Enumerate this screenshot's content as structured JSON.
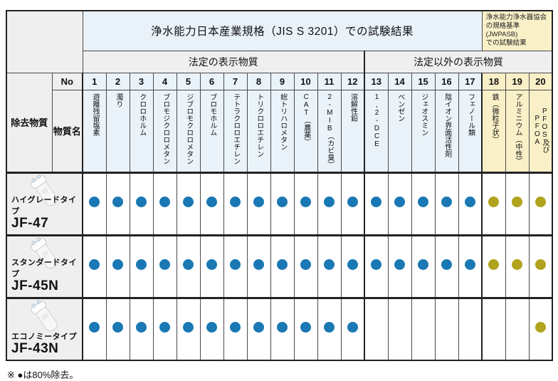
{
  "table": {
    "jis_title": "浄水能力日本産業規格（JIS S 3201）での試験結果",
    "jwpasb": {
      "line1": "浄水能力浄水器協会",
      "line2": "の規格基準(JWPASB)",
      "line3": "での試験結果"
    },
    "legal_group_label": "法定の表示物質",
    "nonlegal_group_label": "法定以外の表示物質",
    "removal_label": "除去物質",
    "no_label": "No",
    "substance_label": "物質名",
    "columns": [
      {
        "no": 1,
        "name": "遊離残留塩素",
        "group": "legal",
        "jwpasb": false
      },
      {
        "no": 2,
        "name": "濁り",
        "group": "legal",
        "jwpasb": false
      },
      {
        "no": 3,
        "name": "クロロホルム",
        "group": "legal",
        "jwpasb": false
      },
      {
        "no": 4,
        "name": "ブロモジクロロメタン",
        "group": "legal",
        "jwpasb": false
      },
      {
        "no": 5,
        "name": "ジブロモクロロメタン",
        "group": "legal",
        "jwpasb": false
      },
      {
        "no": 6,
        "name": "ブロモホルム",
        "group": "legal",
        "jwpasb": false
      },
      {
        "no": 7,
        "name": "テトラクロロエチレン",
        "group": "legal",
        "jwpasb": false
      },
      {
        "no": 8,
        "name": "トリクロロエチレン",
        "group": "legal",
        "jwpasb": false
      },
      {
        "no": 9,
        "name": "総トリハロメタン",
        "group": "legal",
        "jwpasb": false
      },
      {
        "no": 10,
        "name": "CAT（農薬）",
        "group": "legal",
        "jwpasb": false
      },
      {
        "no": 11,
        "name": "2-MIB（カビ臭）",
        "group": "legal",
        "jwpasb": false
      },
      {
        "no": 12,
        "name": "溶解性鉛",
        "group": "legal",
        "jwpasb": false
      },
      {
        "no": 13,
        "name": "1,2-DCE",
        "group": "nonlegal",
        "jwpasb": false
      },
      {
        "no": 14,
        "name": "ベンゼン",
        "group": "nonlegal",
        "jwpasb": false
      },
      {
        "no": 15,
        "name": "ジェオスミン",
        "group": "nonlegal",
        "jwpasb": false
      },
      {
        "no": 16,
        "name": "陰イオン界面活性剤",
        "group": "nonlegal",
        "jwpasb": false
      },
      {
        "no": 17,
        "name": "フェノール類",
        "group": "nonlegal",
        "jwpasb": false
      },
      {
        "no": 18,
        "name": "鉄（微粒子状）",
        "group": "nonlegal",
        "jwpasb": true
      },
      {
        "no": 19,
        "name": "アルミニウム（中性）",
        "group": "nonlegal",
        "jwpasb": true
      },
      {
        "no": 20,
        "name": "PFOS及びPFOA",
        "group": "nonlegal",
        "jwpasb": true
      }
    ],
    "products": [
      {
        "type": "ハイグレードタイプ",
        "model": "JF-47",
        "removed": [
          1,
          2,
          3,
          4,
          5,
          6,
          7,
          8,
          9,
          10,
          11,
          12,
          13,
          14,
          15,
          16,
          17,
          18,
          19,
          20
        ]
      },
      {
        "type": "スタンダードタイプ",
        "model": "JF-45N",
        "removed": [
          1,
          2,
          3,
          4,
          5,
          6,
          7,
          8,
          9,
          10,
          11,
          12,
          13,
          14,
          15,
          16,
          17,
          18,
          19,
          20
        ]
      },
      {
        "type": "エコノミータイプ",
        "model": "JF-43N",
        "removed": [
          1,
          2,
          3,
          4,
          5,
          6,
          7,
          8,
          9,
          10,
          11,
          12,
          20
        ]
      }
    ]
  },
  "footnote": "※ ●は80%除去。",
  "colors": {
    "dot_blue": "#1a78b4",
    "dot_olive": "#b1a31d",
    "header_blue": "#eaf3fa",
    "header_cream": "#faf0c8",
    "header_gray": "#efefef"
  }
}
